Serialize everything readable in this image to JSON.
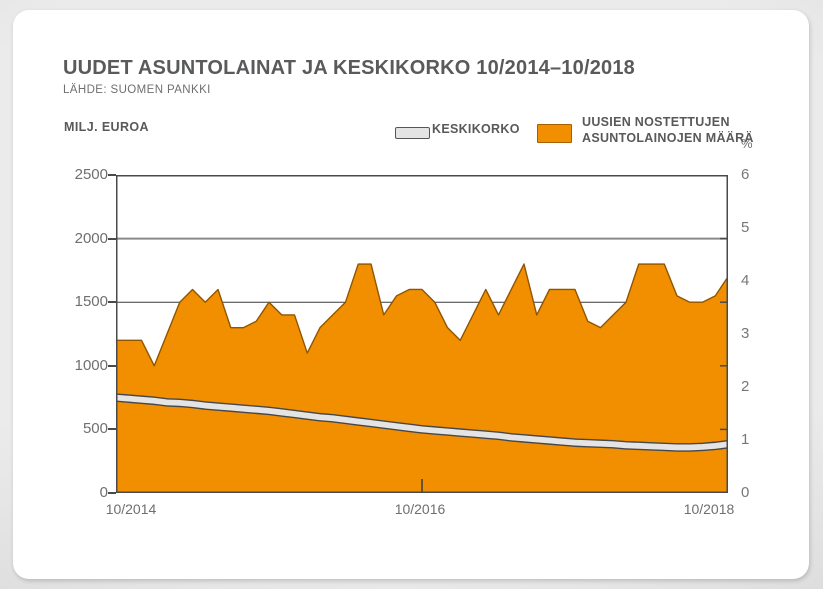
{
  "header": {
    "source": "LÄHDE: SUOMEN PANKKI"
  },
  "legend": {
    "items": [
      {
        "label": "KESKIKORKO",
        "swatch_color": "#e4e4e4",
        "swatch_border": "#55565a",
        "style": "line"
      },
      {
        "label_line1": "UUSIEN NOSTETTUJEN",
        "label_line2": "ASUNTOLAINOJEN MÄÄRÄ",
        "swatch_color": "#f18f00",
        "swatch_border": "#a66000",
        "style": "area"
      }
    ]
  },
  "chart_data": {
    "type": "area",
    "title": "UUDET ASUNTOLAINAT JA KESKIKORKO 10/2014–10/2018",
    "x": [
      "10/2014",
      "11/2014",
      "12/2014",
      "01/2015",
      "02/2015",
      "03/2015",
      "04/2015",
      "05/2015",
      "06/2015",
      "07/2015",
      "08/2015",
      "09/2015",
      "10/2015",
      "11/2015",
      "12/2015",
      "01/2016",
      "02/2016",
      "03/2016",
      "04/2016",
      "05/2016",
      "06/2016",
      "07/2016",
      "08/2016",
      "09/2016",
      "10/2016",
      "11/2016",
      "12/2016",
      "01/2017",
      "02/2017",
      "03/2017",
      "04/2017",
      "05/2017",
      "06/2017",
      "07/2017",
      "08/2017",
      "09/2017",
      "10/2017",
      "11/2017",
      "12/2017",
      "01/2018",
      "02/2018",
      "03/2018",
      "04/2018",
      "05/2018",
      "06/2018",
      "07/2018",
      "08/2018",
      "09/2018",
      "10/2018"
    ],
    "x_axis": {
      "tick_labels": [
        "10/2014",
        "10/2016",
        "10/2018"
      ]
    },
    "left_axis": {
      "label": "MILJ. EUROA",
      "min": 0,
      "max": 2500,
      "ticks": [
        2500,
        2000,
        1500,
        1000,
        500,
        0
      ]
    },
    "right_axis": {
      "label": "%",
      "min": 0,
      "max": 6,
      "ticks": [
        6,
        5,
        4,
        3,
        2,
        1,
        0
      ]
    },
    "gridlines_left_values": [
      2000,
      1500
    ],
    "right_axis_minor_tick_positions_left_scale": [
      2000,
      1500,
      1000,
      500
    ],
    "series": [
      {
        "name": "UUSIEN NOSTETTUJEN ASUNTOLAINOJEN MÄÄRÄ",
        "type": "area",
        "axis": "left",
        "unit": "MILJ. EUROA",
        "color": "#f18f00",
        "outline_color": "#8f5500",
        "values": [
          1200,
          1200,
          1200,
          1000,
          1250,
          1500,
          1600,
          1500,
          1600,
          1300,
          1300,
          1350,
          1500,
          1400,
          1400,
          1100,
          1300,
          1400,
          1500,
          1800,
          1800,
          1400,
          1550,
          1600,
          1600,
          1500,
          1300,
          1200,
          1400,
          1600,
          1400,
          1600,
          1800,
          1400,
          1600,
          1600,
          1600,
          1350,
          1300,
          1400,
          1500,
          1800,
          1800,
          1800,
          1550,
          1500,
          1500,
          1550,
          1700
        ]
      },
      {
        "name": "KESKIKORKO",
        "type": "line",
        "axis": "right",
        "unit": "%",
        "color": "#e4e4e4",
        "outline_color": "#47474a",
        "values": [
          1.8,
          1.78,
          1.76,
          1.74,
          1.71,
          1.7,
          1.68,
          1.65,
          1.63,
          1.61,
          1.59,
          1.57,
          1.55,
          1.52,
          1.49,
          1.46,
          1.43,
          1.41,
          1.38,
          1.35,
          1.32,
          1.29,
          1.26,
          1.23,
          1.2,
          1.18,
          1.16,
          1.14,
          1.12,
          1.1,
          1.08,
          1.05,
          1.03,
          1.01,
          0.99,
          0.97,
          0.95,
          0.94,
          0.93,
          0.92,
          0.9,
          0.89,
          0.88,
          0.87,
          0.86,
          0.86,
          0.87,
          0.89,
          0.92
        ]
      }
    ]
  }
}
